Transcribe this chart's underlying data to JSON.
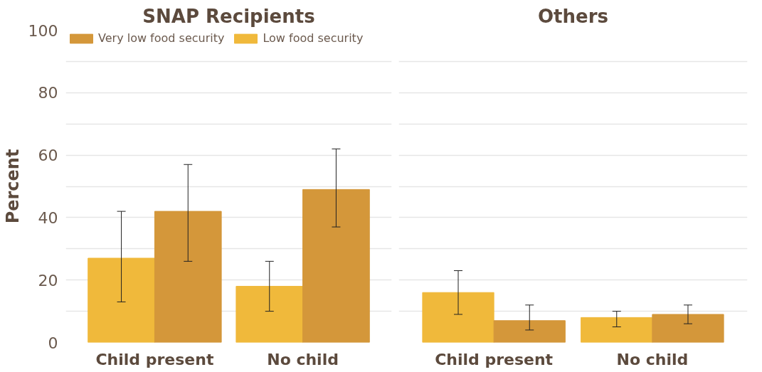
{
  "chart_data": [
    {
      "type": "bar",
      "title": "SNAP Recipients",
      "ylabel": "Percent",
      "categories": [
        "Child present",
        "No child"
      ],
      "ylim": [
        0,
        100
      ],
      "yticks": [
        0,
        {
          "value": 10,
          "label": null
        },
        20,
        {
          "value": 30,
          "label": null
        },
        40,
        {
          "value": 50,
          "label": null
        },
        60,
        {
          "value": 70,
          "label": null
        },
        80,
        {
          "value": 90,
          "label": null
        },
        100
      ],
      "grid": "y",
      "legend": "top left",
      "series": [
        {
          "name": "Low food security",
          "color": "#f0b93b",
          "values": [
            27,
            18
          ],
          "errors": [
            [
              13,
              42
            ],
            [
              10,
              26
            ]
          ]
        },
        {
          "name": "Very low food security",
          "color": "#d4973a",
          "values": [
            42,
            49
          ],
          "errors": [
            [
              26,
              57
            ],
            [
              37,
              62
            ]
          ]
        }
      ]
    },
    {
      "type": "bar",
      "title": "Others",
      "categories": [
        "Child present",
        "No child"
      ],
      "ylim": [
        0,
        100
      ],
      "yticks": [
        0,
        {
          "value": 10,
          "label": null
        },
        20,
        {
          "value": 30,
          "label": null
        },
        40,
        {
          "value": 50,
          "label": null
        },
        60,
        {
          "value": 70,
          "label": null
        },
        80,
        {
          "value": 90,
          "label": null
        },
        100
      ],
      "grid": "y",
      "tick_labels": "x",
      "series": [
        {
          "color": "#f0b93b",
          "values": [
            16,
            8
          ],
          "errors": [
            [
              9,
              23
            ],
            [
              5,
              10
            ]
          ]
        },
        {
          "color": "#d4973a",
          "values": [
            7,
            9
          ],
          "errors": [
            [
              4,
              12
            ],
            [
              6,
              12
            ]
          ]
        }
      ]
    }
  ]
}
